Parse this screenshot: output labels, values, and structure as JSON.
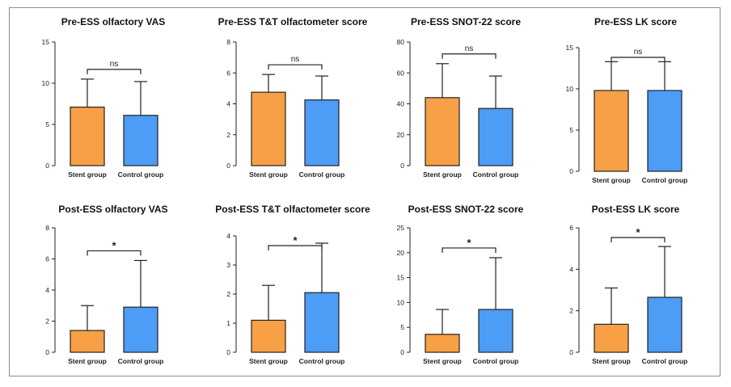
{
  "colors": {
    "stent": "#F7A046",
    "control": "#4D9CF5",
    "stroke": "#222222"
  },
  "chart_data": [
    {
      "type": "bar",
      "title": "Pre-ESS olfactory VAS",
      "categories": [
        "Stent group",
        "Control group"
      ],
      "values": [
        7.1,
        6.1
      ],
      "errors": [
        3.4,
        4.1
      ],
      "ylim": [
        0,
        15
      ],
      "yticks": [
        "0",
        "5",
        "10",
        "15"
      ],
      "significance": "ns"
    },
    {
      "type": "bar",
      "title": "Pre-ESS T&T olfactometer score",
      "categories": [
        "Stent group",
        "Control group"
      ],
      "values": [
        4.75,
        4.25
      ],
      "errors": [
        1.15,
        1.55
      ],
      "ylim": [
        0,
        8
      ],
      "yticks": [
        "0",
        "2",
        "4",
        "6",
        "8"
      ],
      "significance": "ns"
    },
    {
      "type": "bar",
      "title": "Pre-ESS SNOT-22 score",
      "categories": [
        "Stent group",
        "Control group"
      ],
      "values": [
        44,
        37
      ],
      "errors": [
        22,
        21
      ],
      "ylim": [
        0,
        80
      ],
      "yticks": [
        "0",
        "20",
        "40",
        "60",
        "80"
      ],
      "significance": "ns"
    },
    {
      "type": "bar",
      "title": "Pre-ESS LK score",
      "categories": [
        "Stent group",
        "Control group"
      ],
      "values": [
        9.8,
        9.8
      ],
      "errors": [
        3.5,
        3.5
      ],
      "ylim": [
        0,
        15
      ],
      "yticks": [
        "0",
        "5",
        "10",
        "15"
      ],
      "significance": "ns"
    },
    {
      "type": "bar",
      "title": "Post-ESS olfactory VAS",
      "categories": [
        "Stent group",
        "Control group"
      ],
      "values": [
        1.4,
        2.9
      ],
      "errors": [
        1.6,
        3.0
      ],
      "ylim": [
        0,
        8
      ],
      "yticks": [
        "0",
        "2",
        "4",
        "6",
        "8"
      ],
      "significance": "*"
    },
    {
      "type": "bar",
      "title": "Post-ESS T&T olfactometer score",
      "categories": [
        "Stent group",
        "Control group"
      ],
      "values": [
        1.1,
        2.05
      ],
      "errors": [
        1.2,
        1.7
      ],
      "ylim": [
        0,
        4
      ],
      "yticks": [
        "0",
        "1",
        "2",
        "3",
        "4"
      ],
      "significance": "*"
    },
    {
      "type": "bar",
      "title": "Post-ESS SNOT-22 score",
      "categories": [
        "Stent group",
        "Control group"
      ],
      "values": [
        3.6,
        8.6
      ],
      "errors": [
        5.0,
        10.4
      ],
      "ylim": [
        0,
        25
      ],
      "yticks": [
        "0",
        "5",
        "10",
        "15",
        "20",
        "25"
      ],
      "significance": "*"
    },
    {
      "type": "bar",
      "title": "Post-ESS LK score",
      "categories": [
        "Stent group",
        "Control group"
      ],
      "values": [
        1.35,
        2.65
      ],
      "errors": [
        1.75,
        2.45
      ],
      "ylim": [
        0,
        6
      ],
      "yticks": [
        "0",
        "2",
        "4",
        "6"
      ],
      "significance": "*"
    }
  ]
}
